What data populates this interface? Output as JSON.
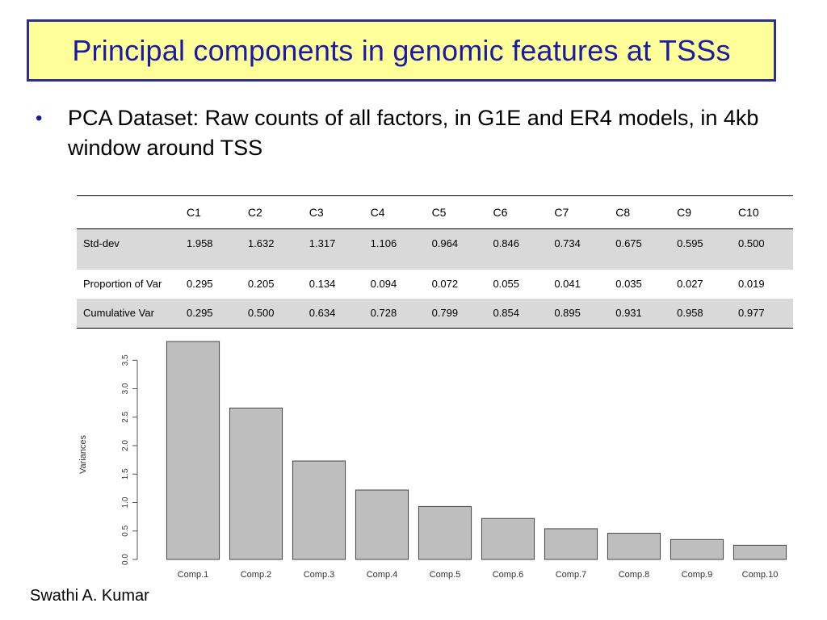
{
  "slide": {
    "title": "Principal components in genomic features at TSSs",
    "bullet_marker": "•",
    "bullet_text": "PCA Dataset: Raw counts of all factors, in G1E and ER4 models, in 4kb window around TSS",
    "footer": "Swathi A. Kumar"
  },
  "table": {
    "headers": [
      "",
      "C1",
      "C2",
      "C3",
      "C4",
      "C5",
      "C6",
      "C7",
      "C8",
      "C9",
      "C10"
    ],
    "rows": [
      [
        "Std-dev",
        "1.958",
        "1.632",
        "1.317",
        "1.106",
        "0.964",
        "0.846",
        "0.734",
        "0.675",
        "0.595",
        "0.500"
      ],
      [
        "Proportion of Var",
        "0.295",
        "0.205",
        "0.134",
        "0.094",
        "0.072",
        "0.055",
        "0.041",
        "0.035",
        "0.027",
        "0.019"
      ],
      [
        "Cumulative Var",
        "0.295",
        "0.500",
        "0.634",
        "0.728",
        "0.799",
        "0.854",
        "0.895",
        "0.931",
        "0.958",
        "0.977"
      ]
    ]
  },
  "colors": {
    "title_bg": "#ffff99",
    "title_border": "#2b2f8f",
    "title_text": "#1a1aa6",
    "shaded_row": "#d9d9d9",
    "bar_fill": "#bebebe"
  },
  "chart_data": {
    "type": "bar",
    "categories": [
      "Comp.1",
      "Comp.2",
      "Comp.3",
      "Comp.4",
      "Comp.5",
      "Comp.6",
      "Comp.7",
      "Comp.8",
      "Comp.9",
      "Comp.10"
    ],
    "values": [
      3.83,
      2.66,
      1.73,
      1.22,
      0.93,
      0.72,
      0.54,
      0.46,
      0.35,
      0.25
    ],
    "title": "",
    "xlabel": "",
    "ylabel": "Variances",
    "ylim": [
      0,
      3.83
    ],
    "yticks": [
      0.0,
      0.5,
      1.0,
      1.5,
      2.0,
      2.5,
      3.0,
      3.5
    ],
    "ytick_labels": [
      "0.0",
      "0.5",
      "1.0",
      "1.5",
      "2.0",
      "2.5",
      "3.0",
      "3.5"
    ],
    "grid": false
  }
}
